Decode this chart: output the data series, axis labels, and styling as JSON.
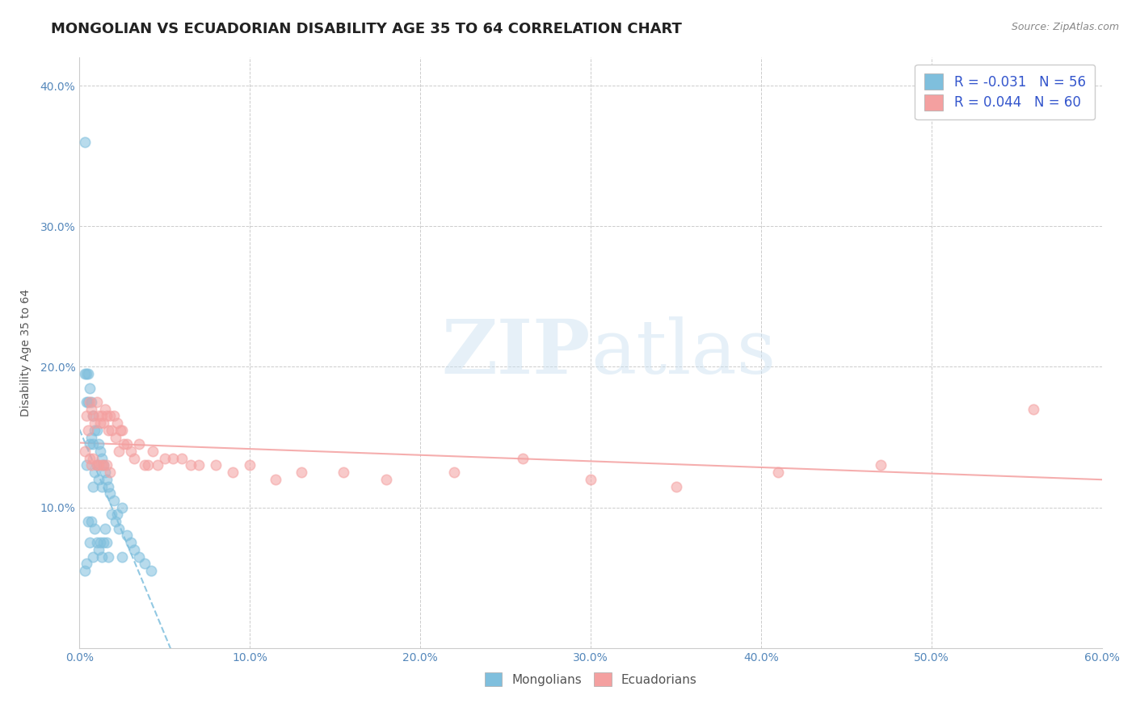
{
  "title": "MONGOLIAN VS ECUADORIAN DISABILITY AGE 35 TO 64 CORRELATION CHART",
  "source": "Source: ZipAtlas.com",
  "ylabel": "Disability Age 35 to 64",
  "xlim": [
    0.0,
    0.6
  ],
  "ylim": [
    0.0,
    0.42
  ],
  "xticks": [
    0.0,
    0.1,
    0.2,
    0.3,
    0.4,
    0.5,
    0.6
  ],
  "yticks": [
    0.0,
    0.1,
    0.2,
    0.3,
    0.4
  ],
  "mongolian_R": -0.031,
  "mongolian_N": 56,
  "ecuadorian_R": 0.044,
  "ecuadorian_N": 60,
  "mongolian_color": "#7fbfdd",
  "ecuadorian_color": "#f4a0a0",
  "background_color": "#ffffff",
  "grid_color": "#cccccc",
  "mongolian_x": [
    0.003,
    0.003,
    0.003,
    0.004,
    0.004,
    0.004,
    0.004,
    0.005,
    0.005,
    0.005,
    0.006,
    0.006,
    0.006,
    0.007,
    0.007,
    0.007,
    0.008,
    0.008,
    0.008,
    0.008,
    0.009,
    0.009,
    0.009,
    0.01,
    0.01,
    0.01,
    0.011,
    0.011,
    0.011,
    0.012,
    0.012,
    0.013,
    0.013,
    0.013,
    0.014,
    0.014,
    0.015,
    0.015,
    0.016,
    0.016,
    0.017,
    0.017,
    0.018,
    0.019,
    0.02,
    0.021,
    0.022,
    0.023,
    0.025,
    0.025,
    0.028,
    0.03,
    0.032,
    0.035,
    0.038,
    0.042
  ],
  "mongolian_y": [
    0.36,
    0.195,
    0.055,
    0.195,
    0.175,
    0.13,
    0.06,
    0.195,
    0.175,
    0.09,
    0.185,
    0.145,
    0.075,
    0.175,
    0.15,
    0.09,
    0.165,
    0.145,
    0.115,
    0.065,
    0.155,
    0.125,
    0.085,
    0.155,
    0.13,
    0.075,
    0.145,
    0.12,
    0.07,
    0.14,
    0.075,
    0.135,
    0.115,
    0.065,
    0.13,
    0.075,
    0.125,
    0.085,
    0.12,
    0.075,
    0.115,
    0.065,
    0.11,
    0.095,
    0.105,
    0.09,
    0.095,
    0.085,
    0.1,
    0.065,
    0.08,
    0.075,
    0.07,
    0.065,
    0.06,
    0.055
  ],
  "ecuadorian_x": [
    0.003,
    0.004,
    0.005,
    0.006,
    0.006,
    0.007,
    0.007,
    0.008,
    0.008,
    0.009,
    0.01,
    0.01,
    0.011,
    0.011,
    0.012,
    0.013,
    0.013,
    0.014,
    0.014,
    0.015,
    0.016,
    0.016,
    0.017,
    0.018,
    0.018,
    0.019,
    0.02,
    0.021,
    0.022,
    0.023,
    0.024,
    0.025,
    0.026,
    0.028,
    0.03,
    0.032,
    0.035,
    0.038,
    0.04,
    0.043,
    0.046,
    0.05,
    0.055,
    0.06,
    0.065,
    0.07,
    0.08,
    0.09,
    0.1,
    0.115,
    0.13,
    0.155,
    0.18,
    0.22,
    0.26,
    0.3,
    0.35,
    0.41,
    0.47,
    0.56
  ],
  "ecuadorian_y": [
    0.14,
    0.165,
    0.155,
    0.175,
    0.135,
    0.17,
    0.13,
    0.165,
    0.135,
    0.16,
    0.175,
    0.13,
    0.165,
    0.13,
    0.16,
    0.165,
    0.13,
    0.16,
    0.13,
    0.17,
    0.165,
    0.13,
    0.155,
    0.165,
    0.125,
    0.155,
    0.165,
    0.15,
    0.16,
    0.14,
    0.155,
    0.155,
    0.145,
    0.145,
    0.14,
    0.135,
    0.145,
    0.13,
    0.13,
    0.14,
    0.13,
    0.135,
    0.135,
    0.135,
    0.13,
    0.13,
    0.13,
    0.125,
    0.13,
    0.12,
    0.125,
    0.125,
    0.12,
    0.125,
    0.135,
    0.12,
    0.115,
    0.125,
    0.13,
    0.17
  ],
  "watermark_zip": "ZIP",
  "watermark_atlas": "atlas",
  "title_fontsize": 13,
  "axis_label_fontsize": 10,
  "tick_fontsize": 10,
  "legend_fontsize": 12,
  "source_fontsize": 9,
  "legend_text_color": "#3355cc",
  "tick_color": "#5588bb",
  "ylabel_color": "#555555",
  "source_color": "#888888"
}
